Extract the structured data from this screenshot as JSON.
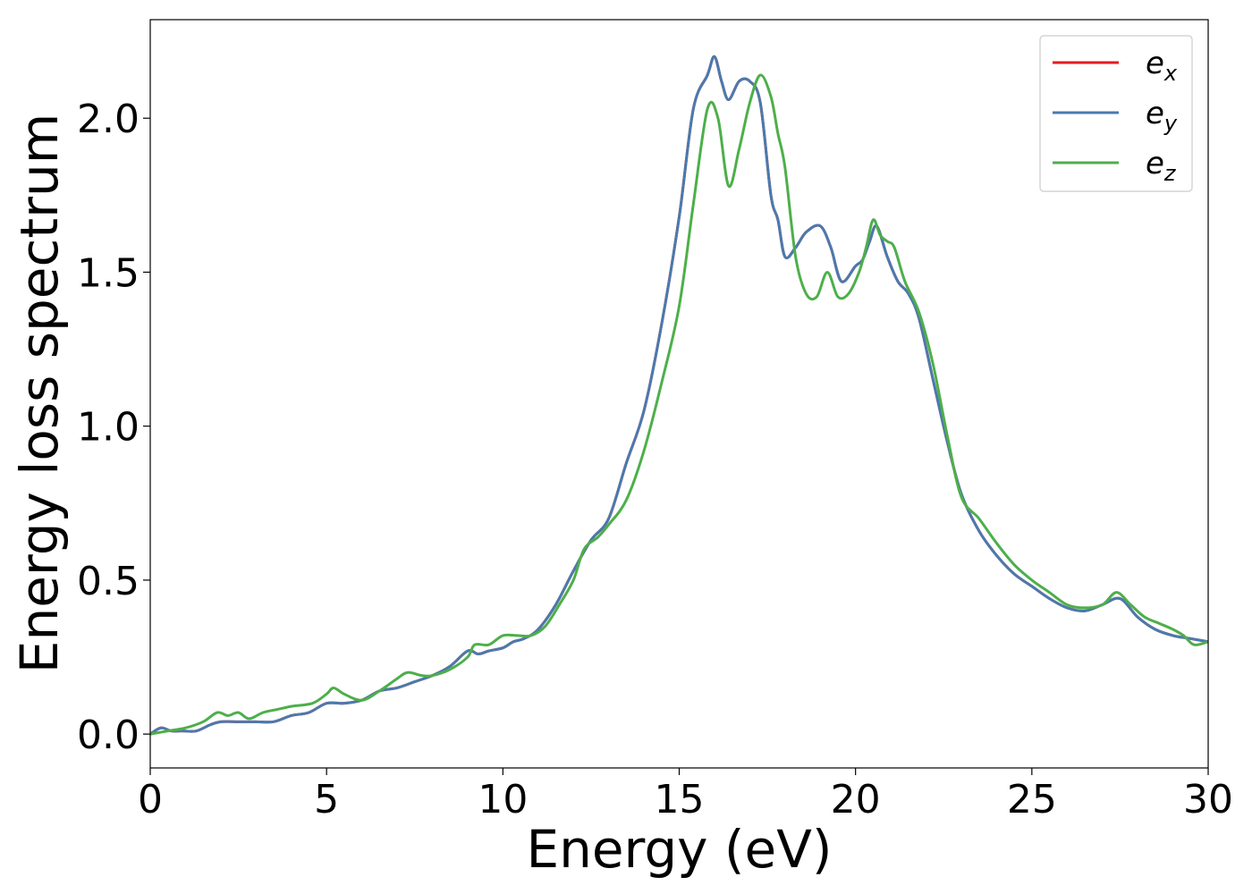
{
  "chart_data": {
    "type": "line",
    "xlabel": "Energy (eV)",
    "ylabel": "Energy loss spectrum",
    "xlim": [
      0,
      30
    ],
    "ylim": [
      -0.11,
      2.32
    ],
    "xticks": [
      "0",
      "5",
      "10",
      "15",
      "20",
      "25",
      "30"
    ],
    "yticks": [
      "0.0",
      "0.5",
      "1.0",
      "1.5",
      "2.0"
    ],
    "grid": false,
    "legend_position": "top-right",
    "series": [
      {
        "name": "e_x",
        "legend_base": "e",
        "legend_sub": "x",
        "color": "#e41a1c",
        "x": [
          0,
          0.3,
          0.6,
          0.9,
          1.3,
          1.7,
          2.0,
          2.5,
          3.0,
          3.5,
          4.0,
          4.5,
          5.0,
          5.5,
          6.0,
          6.5,
          7.0,
          7.5,
          8.0,
          8.5,
          9.0,
          9.3,
          9.6,
          10.0,
          10.3,
          10.6,
          11.0,
          11.5,
          12.0,
          12.5,
          13.0,
          13.5,
          14.0,
          14.5,
          15.0,
          15.4,
          15.8,
          16.0,
          16.2,
          16.4,
          16.7,
          17.0,
          17.3,
          17.6,
          17.8,
          18.0,
          18.3,
          18.6,
          19.0,
          19.3,
          19.6,
          20.0,
          20.2,
          20.4,
          20.6,
          20.9,
          21.2,
          21.5,
          21.8,
          22.2,
          22.6,
          23.0,
          23.5,
          24.0,
          24.5,
          25.0,
          25.5,
          26.0,
          26.5,
          27.0,
          27.5,
          28.0,
          28.5,
          29.0,
          29.5,
          30.0
        ],
        "values": [
          0.0,
          0.02,
          0.01,
          0.01,
          0.01,
          0.03,
          0.04,
          0.04,
          0.04,
          0.04,
          0.06,
          0.07,
          0.1,
          0.1,
          0.11,
          0.14,
          0.15,
          0.17,
          0.19,
          0.22,
          0.27,
          0.26,
          0.27,
          0.28,
          0.3,
          0.31,
          0.34,
          0.42,
          0.53,
          0.63,
          0.7,
          0.88,
          1.05,
          1.33,
          1.68,
          2.03,
          2.14,
          2.2,
          2.12,
          2.06,
          2.12,
          2.12,
          2.05,
          1.75,
          1.67,
          1.55,
          1.58,
          1.63,
          1.65,
          1.58,
          1.47,
          1.52,
          1.54,
          1.6,
          1.65,
          1.55,
          1.47,
          1.43,
          1.35,
          1.15,
          0.95,
          0.78,
          0.66,
          0.58,
          0.52,
          0.48,
          0.44,
          0.41,
          0.4,
          0.42,
          0.44,
          0.38,
          0.34,
          0.32,
          0.31,
          0.3
        ]
      },
      {
        "name": "e_y",
        "legend_base": "e",
        "legend_sub": "y",
        "color": "#4a7aae",
        "x": [
          0,
          0.3,
          0.6,
          0.9,
          1.3,
          1.7,
          2.0,
          2.5,
          3.0,
          3.5,
          4.0,
          4.5,
          5.0,
          5.5,
          6.0,
          6.5,
          7.0,
          7.5,
          8.0,
          8.5,
          9.0,
          9.3,
          9.6,
          10.0,
          10.3,
          10.6,
          11.0,
          11.5,
          12.0,
          12.5,
          13.0,
          13.5,
          14.0,
          14.5,
          15.0,
          15.4,
          15.8,
          16.0,
          16.2,
          16.4,
          16.7,
          17.0,
          17.3,
          17.6,
          17.8,
          18.0,
          18.3,
          18.6,
          19.0,
          19.3,
          19.6,
          20.0,
          20.2,
          20.4,
          20.6,
          20.9,
          21.2,
          21.5,
          21.8,
          22.2,
          22.6,
          23.0,
          23.5,
          24.0,
          24.5,
          25.0,
          25.5,
          26.0,
          26.5,
          27.0,
          27.5,
          28.0,
          28.5,
          29.0,
          29.5,
          30.0
        ],
        "values": [
          0.0,
          0.02,
          0.01,
          0.01,
          0.01,
          0.03,
          0.04,
          0.04,
          0.04,
          0.04,
          0.06,
          0.07,
          0.1,
          0.1,
          0.11,
          0.14,
          0.15,
          0.17,
          0.19,
          0.22,
          0.27,
          0.26,
          0.27,
          0.28,
          0.3,
          0.31,
          0.34,
          0.42,
          0.53,
          0.63,
          0.7,
          0.88,
          1.05,
          1.33,
          1.68,
          2.03,
          2.14,
          2.2,
          2.12,
          2.06,
          2.12,
          2.12,
          2.05,
          1.75,
          1.67,
          1.55,
          1.58,
          1.63,
          1.65,
          1.58,
          1.47,
          1.52,
          1.54,
          1.6,
          1.65,
          1.55,
          1.47,
          1.43,
          1.35,
          1.15,
          0.95,
          0.78,
          0.66,
          0.58,
          0.52,
          0.48,
          0.44,
          0.41,
          0.4,
          0.42,
          0.44,
          0.38,
          0.34,
          0.32,
          0.31,
          0.3
        ]
      },
      {
        "name": "e_z",
        "legend_base": "e",
        "legend_sub": "z",
        "color": "#4daf4a",
        "x": [
          0,
          0.5,
          1.0,
          1.5,
          1.9,
          2.2,
          2.5,
          2.8,
          3.2,
          3.6,
          4.0,
          4.6,
          5.0,
          5.2,
          5.5,
          6.0,
          6.5,
          7.0,
          7.3,
          7.7,
          8.0,
          8.5,
          9.0,
          9.2,
          9.6,
          10.0,
          10.4,
          10.8,
          11.2,
          11.6,
          12.0,
          12.3,
          12.7,
          13.0,
          13.5,
          14.0,
          14.5,
          15.0,
          15.4,
          15.8,
          16.1,
          16.4,
          16.7,
          17.0,
          17.3,
          17.6,
          17.8,
          18.0,
          18.3,
          18.6,
          18.9,
          19.2,
          19.5,
          19.8,
          20.1,
          20.3,
          20.5,
          20.7,
          20.9,
          21.1,
          21.4,
          21.8,
          22.2,
          22.6,
          23.0,
          23.5,
          24.0,
          24.5,
          25.0,
          25.5,
          26.0,
          26.5,
          27.0,
          27.4,
          27.8,
          28.2,
          28.6,
          29.0,
          29.3,
          29.6,
          30.0
        ],
        "values": [
          0.0,
          0.01,
          0.02,
          0.04,
          0.07,
          0.06,
          0.07,
          0.05,
          0.07,
          0.08,
          0.09,
          0.1,
          0.13,
          0.15,
          0.13,
          0.11,
          0.14,
          0.18,
          0.2,
          0.19,
          0.19,
          0.21,
          0.25,
          0.29,
          0.29,
          0.32,
          0.32,
          0.32,
          0.35,
          0.42,
          0.5,
          0.6,
          0.64,
          0.68,
          0.76,
          0.92,
          1.14,
          1.39,
          1.72,
          2.03,
          2.0,
          1.78,
          1.9,
          2.05,
          2.14,
          2.07,
          1.95,
          1.84,
          1.55,
          1.43,
          1.42,
          1.5,
          1.42,
          1.43,
          1.5,
          1.58,
          1.67,
          1.62,
          1.6,
          1.58,
          1.47,
          1.37,
          1.2,
          0.97,
          0.77,
          0.7,
          0.62,
          0.55,
          0.5,
          0.46,
          0.42,
          0.41,
          0.42,
          0.46,
          0.42,
          0.38,
          0.36,
          0.34,
          0.32,
          0.29,
          0.3
        ]
      }
    ]
  }
}
